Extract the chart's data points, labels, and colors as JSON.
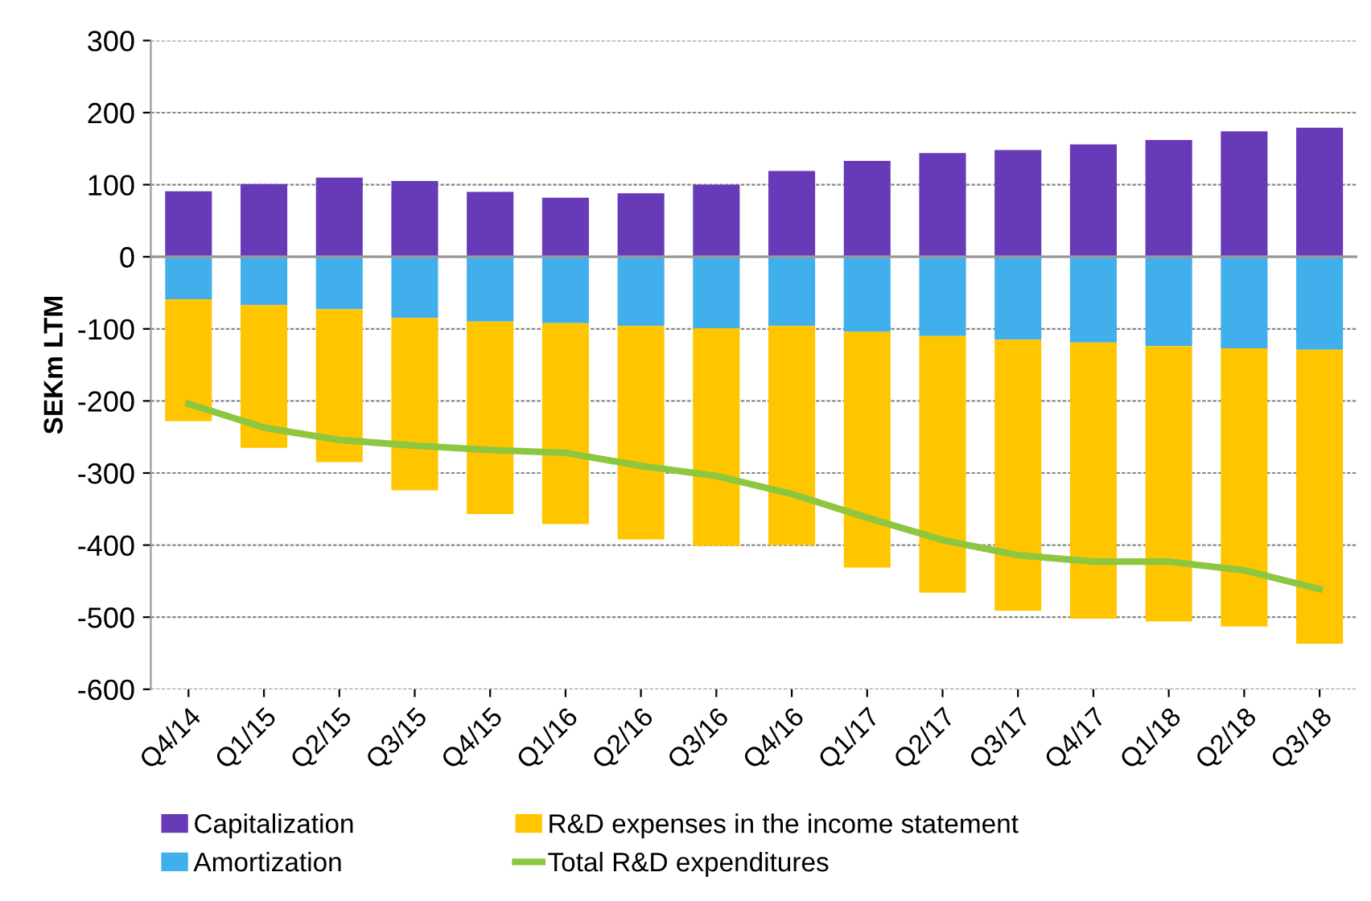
{
  "chart_data": {
    "type": "bar",
    "stacked": true,
    "ylabel": "SEKm LTM",
    "categories": [
      "Q4/14",
      "Q1/15",
      "Q2/15",
      "Q3/15",
      "Q4/15",
      "Q1/16",
      "Q2/16",
      "Q3/16",
      "Q4/16",
      "Q1/17",
      "Q2/17",
      "Q3/17",
      "Q4/17",
      "Q1/18",
      "Q2/18",
      "Q3/18"
    ],
    "series": [
      {
        "name": "Capitalization",
        "color": "#673ab7",
        "values": [
          91,
          101,
          110,
          105,
          90,
          82,
          88,
          100,
          119,
          133,
          144,
          148,
          156,
          162,
          174,
          179
        ]
      },
      {
        "name": "Amortization",
        "color": "#41afec",
        "values": [
          -59,
          -67,
          -73,
          -85,
          -90,
          -92,
          -96,
          -99,
          -96,
          -104,
          -110,
          -115,
          -119,
          -124,
          -127,
          -129
        ]
      },
      {
        "name": "R&D expenses in the income statement",
        "color": "#ffc600",
        "values": [
          -169,
          -198,
          -212,
          -239,
          -267,
          -279,
          -296,
          -302,
          -304,
          -327,
          -356,
          -376,
          -383,
          -382,
          -386,
          -408
        ]
      },
      {
        "name": "Total R&D expenditures",
        "type": "line",
        "color": "#8dc63f",
        "values": [
          -204,
          -237,
          -254,
          -262,
          -268,
          -272,
          -290,
          -304,
          -329,
          -362,
          -393,
          -414,
          -423,
          -423,
          -435,
          -461
        ]
      }
    ],
    "ylim": [
      -600,
      300
    ],
    "yticks": [
      -600,
      -500,
      -400,
      -300,
      -200,
      -100,
      0,
      100,
      200,
      300
    ],
    "grid": "y",
    "legend": "bottom",
    "line_style": "solid",
    "marker": "none"
  }
}
